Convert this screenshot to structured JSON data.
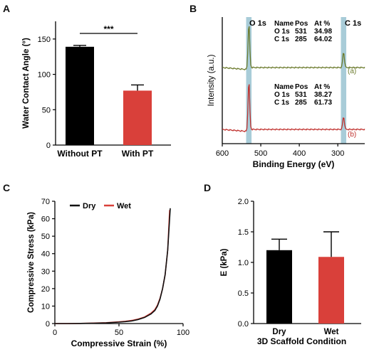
{
  "chart_data": [
    {
      "panel": "A",
      "type": "bar",
      "categories": [
        "Without PT",
        "With PT"
      ],
      "values": [
        139,
        77
      ],
      "errors": [
        2,
        8
      ],
      "ylabel": "Water Contact Angle (°)",
      "ylim": [
        0,
        175
      ],
      "yticks": [
        0,
        50,
        100,
        150
      ],
      "significance": "***",
      "colors": [
        "#000000",
        "#d9403a"
      ]
    },
    {
      "panel": "B",
      "type": "line",
      "xlabel": "Binding Energy (eV)",
      "ylabel": "Intensity (a.u.)",
      "xlim": [
        600,
        230
      ],
      "xticks": [
        600,
        500,
        400,
        300
      ],
      "peaks": [
        "O 1s",
        "C 1s"
      ],
      "series": [
        {
          "name": "(a)",
          "color": "#6b7a2c",
          "table": {
            "header": [
              "Name",
              "Pos",
              "At %"
            ],
            "rows": [
              [
                "O 1s",
                "531",
                "34.98"
              ],
              [
                "C 1s",
                "285",
                "64.02"
              ]
            ]
          }
        },
        {
          "name": "(b)",
          "color": "#c0302d",
          "table": {
            "header": [
              "Name",
              "Pos",
              "At %"
            ],
            "rows": [
              [
                "O 1s",
                "531",
                "38.27"
              ],
              [
                "C 1s",
                "285",
                "61.73"
              ]
            ]
          }
        }
      ],
      "highlight_color": "#a8ccd8"
    },
    {
      "panel": "C",
      "type": "line",
      "xlabel": "Compressive Strain (%)",
      "ylabel": "Compressive Stress (kPa)",
      "xlim": [
        0,
        100
      ],
      "ylim": [
        0,
        70
      ],
      "xticks": [
        0,
        50,
        100
      ],
      "yticks": [
        0,
        10,
        20,
        30,
        40,
        50,
        60,
        70
      ],
      "legend_position": "top-left",
      "series": [
        {
          "name": "Dry",
          "color": "#111111",
          "x": [
            0,
            10,
            20,
            30,
            40,
            50,
            55,
            60,
            65,
            70,
            75,
            78,
            80,
            82,
            84,
            86,
            88,
            90
          ],
          "y": [
            0,
            0,
            0.1,
            0.2,
            0.4,
            0.8,
            1.1,
            1.5,
            2.3,
            3.5,
            5.5,
            7.5,
            10,
            14,
            20,
            28,
            42,
            66
          ]
        },
        {
          "name": "Wet",
          "color": "#d9403a",
          "x": [
            0,
            10,
            20,
            30,
            40,
            50,
            55,
            60,
            65,
            70,
            75,
            78,
            80,
            82,
            84,
            86,
            88,
            89.5
          ],
          "y": [
            0,
            0,
            0.1,
            0.3,
            0.5,
            1.0,
            1.3,
            1.8,
            2.6,
            3.8,
            6.0,
            8.0,
            10.5,
            14.5,
            20,
            28,
            42,
            65
          ]
        }
      ]
    },
    {
      "panel": "D",
      "type": "bar",
      "categories": [
        "Dry",
        "Wet"
      ],
      "values": [
        1.2,
        1.09
      ],
      "errors": [
        0.18,
        0.41
      ],
      "ylabel": "E (kPa)",
      "xlabel": "3D Scaffold Condition",
      "ylim": [
        0,
        2.0
      ],
      "yticks": [
        "0.0",
        "0.5",
        "1.0",
        "1.5",
        "2.0"
      ],
      "colors": [
        "#000000",
        "#d9403a"
      ]
    }
  ]
}
